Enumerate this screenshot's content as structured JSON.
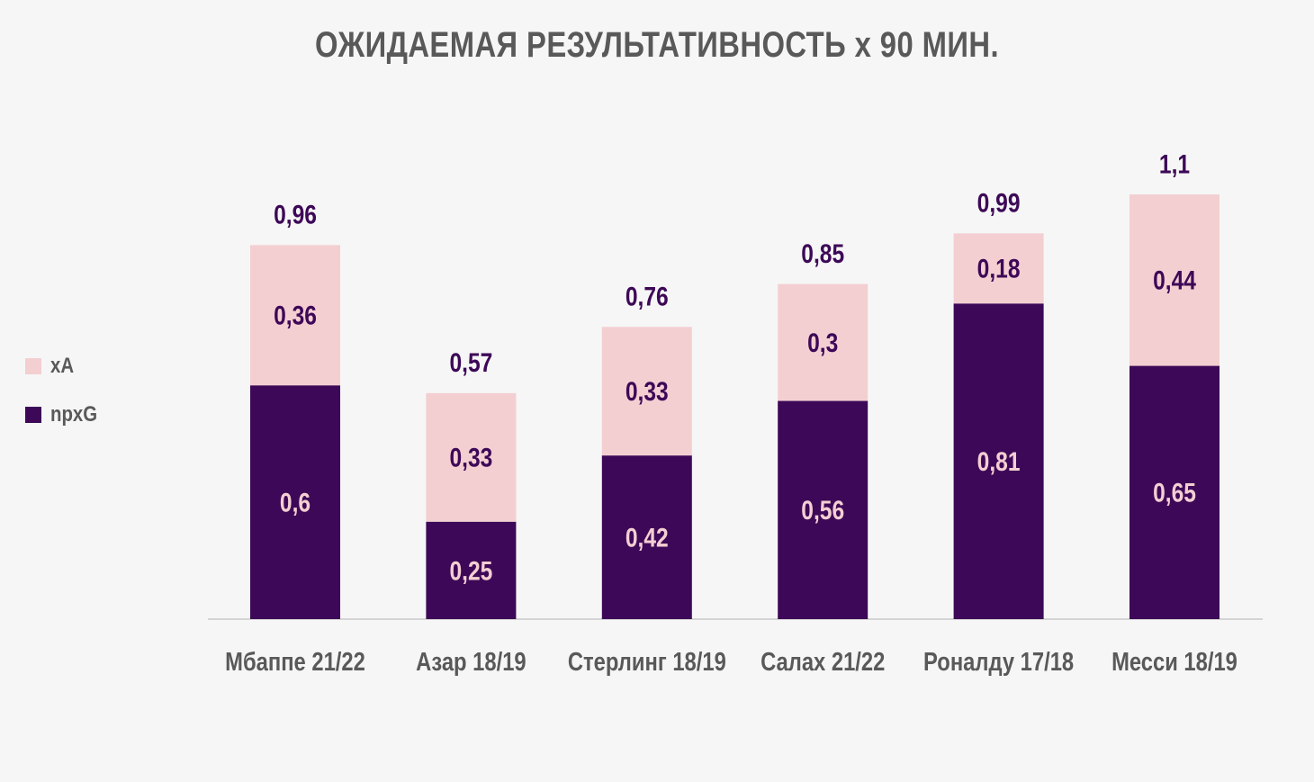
{
  "chart_data": {
    "type": "bar",
    "stacked": true,
    "title": "ОЖИДАЕМАЯ РЕЗУЛЬТАТИВНОСТЬ х 90 МИН.",
    "categories": [
      "Мбаппе 21/22",
      "Азар 18/19",
      "Стерлинг 18/19",
      "Салах 21/22",
      "Роналду 17/18",
      "Месси 18/19"
    ],
    "series": [
      {
        "name": "npxG",
        "color": "#3d0857",
        "label_color": "#f3cfd2",
        "values": [
          0.6,
          0.25,
          0.42,
          0.56,
          0.81,
          0.65
        ],
        "labels": [
          "0,6",
          "0,25",
          "0,42",
          "0,56",
          "0,81",
          "0,65"
        ]
      },
      {
        "name": "xA",
        "color": "#f3cfd2",
        "label_color": "#3d0857",
        "values": [
          0.36,
          0.33,
          0.33,
          0.3,
          0.18,
          0.44
        ],
        "labels": [
          "0,36",
          "0,33",
          "0,33",
          "0,3",
          "0,18",
          "0,44"
        ]
      }
    ],
    "totals": [
      0.96,
      0.57,
      0.76,
      0.85,
      0.99,
      1.1
    ],
    "total_labels": [
      "0,96",
      "0,57",
      "0,76",
      "0,85",
      "0,99",
      "1,1"
    ],
    "legend_position": "left",
    "grid": false
  },
  "legend": [
    {
      "name": "xA",
      "color": "#f3cfd2"
    },
    {
      "name": "npxG",
      "color": "#3d0857"
    }
  ],
  "colors": {
    "background": "#f6f6f6",
    "text": "#595959",
    "axis": "#c8c8c8",
    "total_label": "#3d0857"
  }
}
